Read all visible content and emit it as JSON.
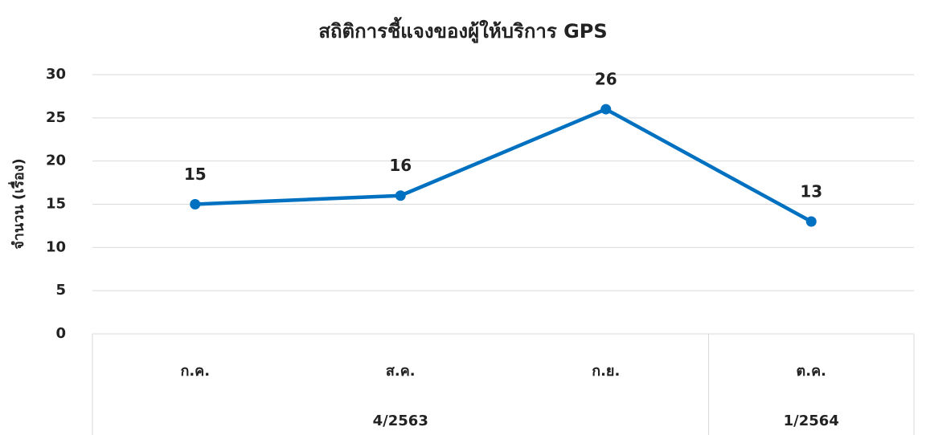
{
  "chart_data": {
    "type": "line",
    "title": "สถิติการชี้แจงของผู้ให้บริการ GPS",
    "y_label": "จำนวน (เรื่อง)",
    "categories": [
      "ก.ค.",
      "ส.ค.",
      "ก.ย.",
      "ต.ค."
    ],
    "category_groups": [
      "4/2563",
      "4/2563",
      "4/2563",
      "1/2564"
    ],
    "series": [
      {
        "name": "จำนวน",
        "color": "#0070c0",
        "values": [
          15,
          16,
          26,
          13
        ]
      }
    ],
    "ylim": [
      0,
      30
    ],
    "yticks": [
      0,
      5,
      10,
      15,
      20,
      25,
      30
    ],
    "grid": true
  }
}
